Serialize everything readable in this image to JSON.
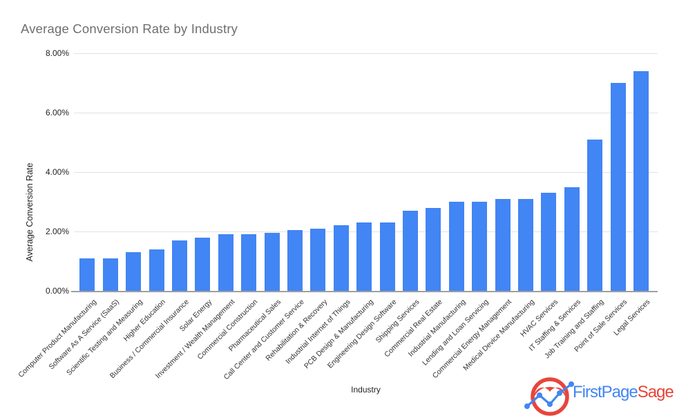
{
  "page": {
    "title": "Average Conversion Rate by Industry"
  },
  "chart_data": {
    "type": "bar",
    "title": "Average Conversion Rate by Industry",
    "xlabel": "Industry",
    "ylabel": "Average Conversion Rate",
    "unit": "%",
    "ylim": [
      0,
      8
    ],
    "y_ticks": [
      "0.00%",
      "2.00%",
      "4.00%",
      "6.00%",
      "8.00%"
    ],
    "grid": true,
    "legend": "none",
    "bar_color": "#4285F4",
    "categories": [
      "Computer Product Manufacturing",
      "Software As A Service (SaaS)",
      "Scientific Testing and Measuring",
      "Higher Education",
      "Business / Commercial Insurance",
      "Solar Energy",
      "Investment / Wealth Management",
      "Commercial Construction",
      "Pharmaceutical Sales",
      "Call Center and Customer Service",
      "Rehabilitation & Recovery",
      "Industrial Internet of Things",
      "PCB Design & Manufacturing",
      "Engineering Design Software",
      "Shipping Services",
      "Commercial Real Estate",
      "Industrial Manufacturing",
      "Lending and Loan Servicing",
      "Commercial Energy Management",
      "Medical Device Manufacturing",
      "HVAC Services",
      "IT Staffing & Services",
      "Job Training and Staffing",
      "Point of Sale Services",
      "Legal Services"
    ],
    "values": [
      1.1,
      1.1,
      1.3,
      1.4,
      1.7,
      1.8,
      1.9,
      1.9,
      1.95,
      2.05,
      2.1,
      2.2,
      2.3,
      2.3,
      2.7,
      2.8,
      3.0,
      3.0,
      3.1,
      3.1,
      3.3,
      3.5,
      5.1,
      7.0,
      7.4
    ]
  },
  "branding": {
    "name_primary": "FirstPage",
    "name_secondary": "Sage",
    "primary_color": "#4285F4",
    "secondary_color": "#E94335",
    "icon_red": "#E8453C"
  }
}
